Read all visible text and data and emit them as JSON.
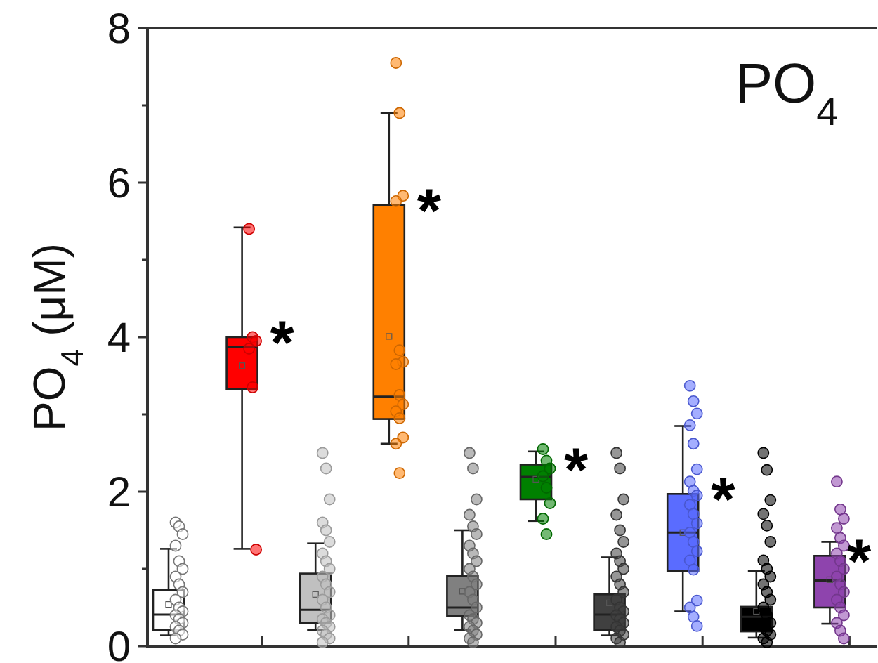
{
  "chart_data": {
    "type": "box",
    "title": "PO$_{4}$",
    "ylabel": "PO$_{4}$ (μM)",
    "categories": [
      null,
      null,
      null,
      null,
      null,
      null,
      null,
      null,
      null,
      null
    ],
    "ylim": [
      0,
      8
    ],
    "yticks": [
      0,
      {
        "value": 1,
        "label": null
      },
      2,
      {
        "value": 3,
        "label": null
      },
      4,
      {
        "value": 5,
        "label": null
      },
      6,
      {
        "value": 7,
        "label": null
      },
      8
    ],
    "colors": [
      "#ffffff",
      "#ff0000",
      "#c0c0c0",
      "#ff8000",
      "#808080",
      "#008000",
      "#404040",
      "#5a6cff",
      "#000000",
      "#8e44ad"
    ],
    "boxes": [
      {
        "low": 0.14,
        "q1": 0.21,
        "median": 0.41,
        "q3": 0.73,
        "high": 1.26,
        "mean": 0.54,
        "outliers": [
          1.6,
          1.55,
          1.45,
          1.3,
          1.1,
          1.0,
          0.9,
          0.8,
          0.7,
          0.6,
          0.5,
          0.45,
          0.4,
          0.35,
          0.3,
          0.25,
          0.2,
          0.15,
          0.1
        ]
      },
      {
        "low": 1.26,
        "q1": 3.33,
        "median": 3.87,
        "q3": 4.0,
        "high": 5.42,
        "mean": 3.63,
        "outliers": [
          5.4,
          4.0,
          3.95,
          3.85,
          3.35,
          1.25
        ]
      },
      {
        "low": 0.21,
        "q1": 0.3,
        "median": 0.47,
        "q3": 0.94,
        "high": 1.33,
        "mean": 0.67,
        "outliers": [
          2.5,
          2.3,
          1.9,
          1.6,
          1.5,
          1.35,
          1.2,
          1.1,
          1.0,
          0.9,
          0.8,
          0.7,
          0.6,
          0.5,
          0.4,
          0.35,
          0.3,
          0.25,
          0.2,
          0.15,
          0.1,
          0.05
        ]
      },
      {
        "low": 2.62,
        "q1": 2.94,
        "median": 3.23,
        "q3": 5.71,
        "high": 6.9,
        "mean": 4.01,
        "outliers": [
          7.55,
          6.9,
          5.83,
          5.76,
          3.83,
          3.68,
          3.65,
          3.25,
          3.13,
          3.04,
          2.95,
          2.7,
          2.62,
          2.24
        ]
      },
      {
        "low": 0.21,
        "q1": 0.39,
        "median": 0.5,
        "q3": 0.91,
        "high": 1.5,
        "mean": 0.71,
        "outliers": [
          2.5,
          2.3,
          1.9,
          1.7,
          1.55,
          1.45,
          1.3,
          1.2,
          1.1,
          1.0,
          0.9,
          0.8,
          0.7,
          0.6,
          0.5,
          0.4,
          0.35,
          0.3,
          0.25,
          0.2,
          0.15,
          0.1,
          0.05
        ]
      },
      {
        "low": 1.62,
        "q1": 1.9,
        "median": 2.19,
        "q3": 2.35,
        "high": 2.52,
        "mean": 2.16,
        "outliers": [
          2.55,
          2.4,
          2.3,
          2.2,
          2.05,
          1.85,
          1.65,
          1.45
        ]
      },
      {
        "low": 0.14,
        "q1": 0.21,
        "median": 0.41,
        "q3": 0.67,
        "high": 1.15,
        "mean": 0.56,
        "outliers": [
          2.5,
          2.3,
          1.9,
          1.7,
          1.5,
          1.35,
          1.2,
          1.1,
          1.0,
          0.9,
          0.8,
          0.7,
          0.6,
          0.5,
          0.45,
          0.4,
          0.35,
          0.3,
          0.25,
          0.2,
          0.15,
          0.1,
          0.05
        ]
      },
      {
        "low": 0.45,
        "q1": 0.97,
        "median": 1.47,
        "q3": 1.97,
        "high": 2.85,
        "mean": 1.47,
        "outliers": [
          3.37,
          3.17,
          3.01,
          2.86,
          2.62,
          2.29,
          2.13,
          2.01,
          1.95,
          1.83,
          1.71,
          1.59,
          1.47,
          1.35,
          1.23,
          1.11,
          0.99,
          0.59,
          0.5,
          0.38,
          0.26
        ]
      },
      {
        "low": 0.11,
        "q1": 0.19,
        "median": 0.38,
        "q3": 0.51,
        "high": 0.97,
        "mean": 0.45,
        "outliers": [
          2.5,
          2.28,
          1.89,
          1.71,
          1.56,
          1.35,
          1.11,
          1.0,
          0.9,
          0.8,
          0.7,
          0.6,
          0.5,
          0.4,
          0.3,
          0.25,
          0.2,
          0.15,
          0.1,
          0.05
        ]
      },
      {
        "low": 0.29,
        "q1": 0.5,
        "median": 0.85,
        "q3": 1.17,
        "high": 1.35,
        "mean": 0.86,
        "outliers": [
          2.13,
          1.77,
          1.65,
          1.53,
          1.4,
          1.3,
          1.2,
          1.1,
          1.0,
          0.9,
          0.8,
          0.7,
          0.6,
          0.5,
          0.4,
          0.3,
          0.2,
          0.1
        ]
      }
    ],
    "annotations": [
      "*",
      "*",
      "*",
      "*",
      "*"
    ]
  }
}
